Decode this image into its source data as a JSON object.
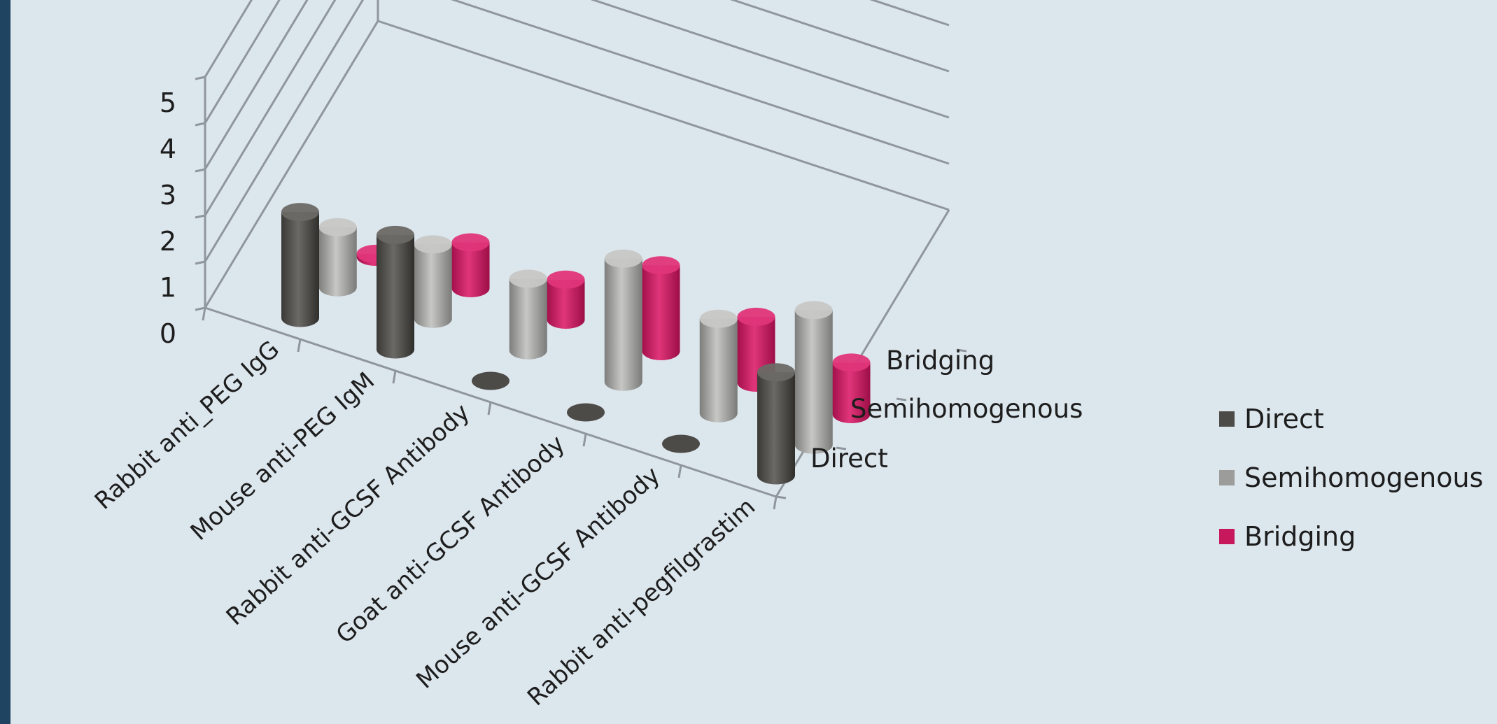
{
  "chart_data": {
    "type": "bar",
    "style": "3d-cylinder",
    "categories": [
      "Rabbit anti_PEG IgG",
      "Mouse anti-PEG IgM",
      "Rabbit anti-GCSF Antibody",
      "Goat anti-GCSF Antibody",
      "Mouse anti-GCSF Antibody",
      "Rabbit anti-pegfilgrastim"
    ],
    "series": [
      {
        "name": "Direct",
        "values": [
          3.7,
          4.0,
          0,
          0,
          0,
          3.6
        ],
        "color": "#4d4b47"
      },
      {
        "name": "Semihomogenous",
        "values": [
          2.1,
          2.6,
          2.5,
          4.3,
          3.3,
          4.7
        ],
        "color": "#9c9c9a"
      },
      {
        "name": "Bridging",
        "values": [
          0.1,
          1.6,
          1.4,
          3.0,
          2.3,
          1.8
        ],
        "color": "#c8185c"
      }
    ],
    "z_labels": [
      "Direct",
      "Semihomogenous",
      "Bridging"
    ],
    "y_ticks": [
      "0",
      "1",
      "2",
      "3",
      "4",
      "5"
    ],
    "ylim": [
      0,
      5
    ],
    "grid": true,
    "legend_position": "right"
  }
}
